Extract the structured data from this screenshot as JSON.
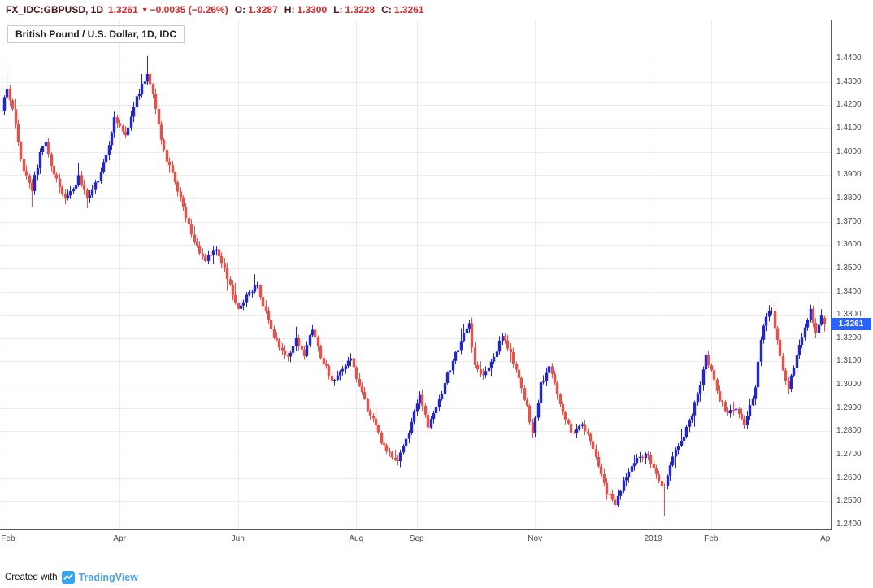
{
  "topbar": {
    "symbol": "FX_IDC:GBPUSD, 1D",
    "last_price": "1.3261",
    "arrow": "▼",
    "change": "−0.0035 (−0.26%)",
    "open_label": "O:",
    "open": "1.3287",
    "high_label": "H:",
    "high": "1.3300",
    "low_label": "L:",
    "low": "1.3228",
    "close_label": "C:",
    "close": "1.3261"
  },
  "legend": {
    "title": "British Pound / U.S. Dollar, 1D, IDC"
  },
  "price_label": {
    "value": "1.3261",
    "color": "#2962ff"
  },
  "footer": {
    "created_with": "Created with",
    "brand": "TradingView"
  },
  "colors": {
    "up": "#2127cc",
    "down": "#e8504a",
    "grid": "#ececf0",
    "axis_text": "#44474f",
    "axis_line": "#555a64"
  },
  "chart_data": {
    "type": "candlestick",
    "title": "British Pound / U.S. Dollar, 1D, IDC",
    "symbol": "FX_IDC:GBPUSD",
    "interval": "1D",
    "exchange": "IDC",
    "xlabel": "",
    "ylabel": "GBP/USD",
    "visible_range": {
      "start": "Feb 2018",
      "end": "Apr 2019"
    },
    "price_min": 1.2379,
    "price_max": 1.4568,
    "y_ticks": [
      "1.4400",
      "1.4300",
      "1.4200",
      "1.4100",
      "1.4000",
      "1.3900",
      "1.3800",
      "1.3700",
      "1.3600",
      "1.3500",
      "1.3400",
      "1.3300",
      "1.3200",
      "1.3100",
      "1.3000",
      "1.2900",
      "1.2800",
      "1.2700",
      "1.2600",
      "1.2500",
      "1.2400"
    ],
    "x_ticks": [
      {
        "label": "Feb",
        "day": 0
      },
      {
        "label": "Apr",
        "day": 43
      },
      {
        "label": "Jun",
        "day": 86
      },
      {
        "label": "Aug",
        "day": 129
      },
      {
        "label": "Sep",
        "day": 151
      },
      {
        "label": "Nov",
        "day": 194
      },
      {
        "label": "2019",
        "day": 237
      },
      {
        "label": "Feb",
        "day": 258
      },
      {
        "label": "Apr",
        "day": 300
      }
    ],
    "num_days": 300,
    "path_anchors": [
      [
        0,
        1.419
      ],
      [
        2,
        1.428
      ],
      [
        5,
        1.412
      ],
      [
        7,
        1.396
      ],
      [
        11,
        1.384
      ],
      [
        14,
        1.399
      ],
      [
        16,
        1.404
      ],
      [
        19,
        1.39
      ],
      [
        23,
        1.379
      ],
      [
        26,
        1.384
      ],
      [
        28,
        1.389
      ],
      [
        31,
        1.38
      ],
      [
        33,
        1.384
      ],
      [
        36,
        1.39
      ],
      [
        38,
        1.399
      ],
      [
        41,
        1.414
      ],
      [
        45,
        1.407
      ],
      [
        49,
        1.423
      ],
      [
        53,
        1.434
      ],
      [
        56,
        1.419
      ],
      [
        59,
        1.4
      ],
      [
        62,
        1.391
      ],
      [
        66,
        1.376
      ],
      [
        70,
        1.361
      ],
      [
        74,
        1.354
      ],
      [
        78,
        1.358
      ],
      [
        82,
        1.346
      ],
      [
        86,
        1.332
      ],
      [
        90,
        1.34
      ],
      [
        93,
        1.343
      ],
      [
        97,
        1.327
      ],
      [
        101,
        1.316
      ],
      [
        104,
        1.311
      ],
      [
        107,
        1.32
      ],
      [
        110,
        1.313
      ],
      [
        113,
        1.324
      ],
      [
        117,
        1.309
      ],
      [
        121,
        1.301
      ],
      [
        124,
        1.307
      ],
      [
        127,
        1.312
      ],
      [
        130,
        1.299
      ],
      [
        134,
        1.287
      ],
      [
        138,
        1.276
      ],
      [
        141,
        1.27
      ],
      [
        144,
        1.267
      ],
      [
        147,
        1.276
      ],
      [
        150,
        1.289
      ],
      [
        152,
        1.295
      ],
      [
        155,
        1.282
      ],
      [
        158,
        1.29
      ],
      [
        162,
        1.304
      ],
      [
        166,
        1.316
      ],
      [
        170,
        1.326
      ],
      [
        172,
        1.308
      ],
      [
        175,
        1.304
      ],
      [
        179,
        1.312
      ],
      [
        182,
        1.322
      ],
      [
        185,
        1.313
      ],
      [
        188,
        1.302
      ],
      [
        191,
        1.29
      ],
      [
        193,
        1.279
      ],
      [
        196,
        1.3
      ],
      [
        199,
        1.309
      ],
      [
        202,
        1.296
      ],
      [
        205,
        1.284
      ],
      [
        208,
        1.279
      ],
      [
        211,
        1.283
      ],
      [
        214,
        1.276
      ],
      [
        217,
        1.265
      ],
      [
        220,
        1.254
      ],
      [
        223,
        1.249
      ],
      [
        226,
        1.259
      ],
      [
        229,
        1.265
      ],
      [
        232,
        1.27
      ],
      [
        235,
        1.269
      ],
      [
        238,
        1.261
      ],
      [
        241,
        1.256
      ],
      [
        244,
        1.27
      ],
      [
        248,
        1.278
      ],
      [
        251,
        1.287
      ],
      [
        254,
        1.3
      ],
      [
        256,
        1.312
      ],
      [
        258,
        1.307
      ],
      [
        261,
        1.294
      ],
      [
        264,
        1.288
      ],
      [
        267,
        1.291
      ],
      [
        270,
        1.283
      ],
      [
        272,
        1.29
      ],
      [
        274,
        1.3
      ],
      [
        276,
        1.319
      ],
      [
        278,
        1.33
      ],
      [
        280,
        1.333
      ],
      [
        282,
        1.318
      ],
      [
        284,
        1.306
      ],
      [
        286,
        1.299
      ],
      [
        288,
        1.307
      ],
      [
        290,
        1.316
      ],
      [
        292,
        1.324
      ],
      [
        294,
        1.332
      ],
      [
        296,
        1.323
      ],
      [
        298,
        1.329
      ],
      [
        299,
        1.3261
      ]
    ],
    "wick_spikes": [
      {
        "day": 2,
        "high": 1.4348
      },
      {
        "day": 11,
        "low": 1.3765
      },
      {
        "day": 53,
        "high": 1.4412
      },
      {
        "day": 144,
        "low": 1.2662
      },
      {
        "day": 223,
        "low": 1.2478
      },
      {
        "day": 241,
        "low": 1.2438
      },
      {
        "day": 286,
        "low": 1.2962
      },
      {
        "day": 297,
        "high": 1.3382
      }
    ],
    "last_candle": {
      "open": 1.3287,
      "high": 1.33,
      "low": 1.3228,
      "close": 1.3261
    },
    "noise_seed": 7,
    "close_noise": 0.0013,
    "wick_noise": 0.0022
  }
}
